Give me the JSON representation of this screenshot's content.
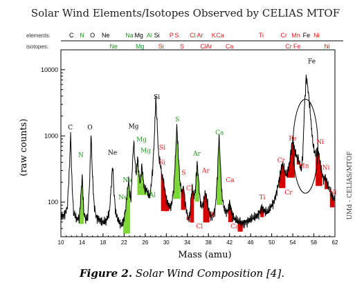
{
  "chart_data": {
    "type": "line",
    "title": "Solar Wind Elements/Isotopes Observed by CELIAS MTOF",
    "xlabel": "Mass  (amu)",
    "ylabel": "(raw counts)",
    "side_label": "UMd - CELIAS/MTOF",
    "caption_bold": "Figure 2.",
    "caption_text": " Solar Wind Composition [4].",
    "x_scale": "linear",
    "y_scale": "log",
    "xlim": [
      10,
      62
    ],
    "ylim": [
      30,
      20000
    ],
    "x_ticks": [
      "10",
      "14",
      "18",
      "22",
      "26",
      "30",
      "34",
      "38",
      "42",
      "46",
      "50",
      "54",
      "58",
      "62"
    ],
    "y_ticks": [
      {
        "value": 100,
        "label": "100"
      },
      {
        "value": 1000,
        "label": "1000"
      },
      {
        "value": 10000,
        "label": "10000"
      }
    ],
    "colors": {
      "element": "#1a9a1a",
      "isotope": "#e8191a",
      "trace": "#000000",
      "green_fill": "#7fd63b",
      "red_fill": "#d50000"
    },
    "header": {
      "elements_label": "elements:",
      "isotopes_label": "isotopes:",
      "elements": [
        {
          "t": "C",
          "x": 12,
          "c": "k"
        },
        {
          "t": "N",
          "x": 14,
          "c": "g"
        },
        {
          "t": "O",
          "x": 16,
          "c": "k"
        },
        {
          "t": "Ne",
          "x": 18.5,
          "c": "k"
        },
        {
          "t": "Na",
          "x": 23,
          "c": "g"
        },
        {
          "t": "Mg",
          "x": 24.8,
          "c": "k"
        },
        {
          "t": "Al",
          "x": 26.8,
          "c": "g"
        },
        {
          "t": "Si",
          "x": 28.2,
          "c": "k"
        },
        {
          "t": "P",
          "x": 31,
          "c": "r"
        },
        {
          "t": "S",
          "x": 32,
          "c": "r"
        },
        {
          "t": "Cl",
          "x": 35,
          "c": "r"
        },
        {
          "t": "Ar",
          "x": 36.4,
          "c": "r"
        },
        {
          "t": "K",
          "x": 39,
          "c": "r"
        },
        {
          "t": "Ca",
          "x": 40.2,
          "c": "r"
        },
        {
          "t": "Ti",
          "x": 48,
          "c": "r"
        },
        {
          "t": "Cr",
          "x": 52.3,
          "c": "r"
        },
        {
          "t": "Mn",
          "x": 54.6,
          "c": "r"
        },
        {
          "t": "Fe",
          "x": 56.6,
          "c": "k"
        },
        {
          "t": "Ni",
          "x": 58.5,
          "c": "r"
        }
      ],
      "isotopes": [
        {
          "t": "Ne",
          "x": 20,
          "c": "g"
        },
        {
          "t": "Mg",
          "x": 25,
          "c": "g"
        },
        {
          "t": "Si",
          "x": 29,
          "c": "r"
        },
        {
          "t": "S",
          "x": 33,
          "c": "r"
        },
        {
          "t": "Cl",
          "x": 37,
          "c": "r"
        },
        {
          "t": "Ar",
          "x": 38.1,
          "c": "r"
        },
        {
          "t": "Ca",
          "x": 42,
          "c": "r"
        },
        {
          "t": "Cr",
          "x": 53.2,
          "c": "r"
        },
        {
          "t": "Fe",
          "x": 54.8,
          "c": "r"
        },
        {
          "t": "Ni",
          "x": 60.5,
          "c": "r"
        }
      ]
    },
    "peak_labels": [
      {
        "t": "C",
        "x": 11.8,
        "y": 1250,
        "c": "k"
      },
      {
        "t": "O",
        "x": 15.5,
        "y": 1250,
        "c": "k"
      },
      {
        "t": "Ne",
        "x": 19.8,
        "y": 520,
        "c": "k"
      },
      {
        "t": "Mg",
        "x": 23.8,
        "y": 1300,
        "c": "k"
      },
      {
        "t": "Si",
        "x": 28.2,
        "y": 3600,
        "c": "k"
      },
      {
        "t": "Fe",
        "x": 57.6,
        "y": 12500,
        "c": "k"
      },
      {
        "t": "N",
        "x": 13.8,
        "y": 480,
        "c": "g"
      },
      {
        "t": "Na",
        "x": 22.6,
        "y": 200,
        "c": "g"
      },
      {
        "t": "Ne",
        "x": 21.8,
        "y": 110,
        "c": "g"
      },
      {
        "t": "Mg",
        "x": 25.3,
        "y": 820,
        "c": "g"
      },
      {
        "t": "Mg",
        "x": 26.1,
        "y": 560,
        "c": "g"
      },
      {
        "t": "Al",
        "x": 27.4,
        "y": 120,
        "c": "g"
      },
      {
        "t": "S",
        "x": 32.1,
        "y": 1650,
        "c": "g"
      },
      {
        "t": "Ar",
        "x": 35.8,
        "y": 500,
        "c": "g"
      },
      {
        "t": "Ca",
        "x": 40.1,
        "y": 1050,
        "c": "g"
      },
      {
        "t": "Si",
        "x": 29.2,
        "y": 620,
        "c": "r"
      },
      {
        "t": "Si",
        "x": 29.2,
        "y": 370,
        "c": "r"
      },
      {
        "t": "S",
        "x": 33.3,
        "y": 260,
        "c": "r"
      },
      {
        "t": "Ar",
        "x": 37.5,
        "y": 280,
        "c": "r"
      },
      {
        "t": "P",
        "x": 30.1,
        "y": 72,
        "c": "r"
      },
      {
        "t": "Cl",
        "x": 34.4,
        "y": 150,
        "c": "r"
      },
      {
        "t": "Cl",
        "x": 34.4,
        "y": 52,
        "c": "r"
      },
      {
        "t": "Cl",
        "x": 36.3,
        "y": 40,
        "c": "r"
      },
      {
        "t": "K",
        "x": 38.8,
        "y": 60,
        "c": "r"
      },
      {
        "t": "Ca",
        "x": 43.0,
        "y": 40,
        "c": "r"
      },
      {
        "t": "Ca",
        "x": 42.1,
        "y": 200,
        "c": "r"
      },
      {
        "t": "Ti",
        "x": 48.2,
        "y": 110,
        "c": "r"
      },
      {
        "t": "Cr",
        "x": 51.8,
        "y": 400,
        "c": "r"
      },
      {
        "t": "Cr",
        "x": 53.2,
        "y": 130,
        "c": "r"
      },
      {
        "t": "Fe",
        "x": 54.0,
        "y": 850,
        "c": "r"
      },
      {
        "t": "Mn",
        "x": 56.1,
        "y": 330,
        "c": "r"
      },
      {
        "t": "Ni",
        "x": 59.2,
        "y": 760,
        "c": "r"
      },
      {
        "t": "Ni",
        "x": 60.3,
        "y": 310,
        "c": "r"
      },
      {
        "t": "Ni",
        "x": 61.6,
        "y": 130,
        "c": "r"
      }
    ],
    "spectrum_anchors": [
      [
        10.0,
        60
      ],
      [
        10.5,
        62
      ],
      [
        11.2,
        80
      ],
      [
        11.6,
        300
      ],
      [
        11.85,
        1050
      ],
      [
        12.1,
        200
      ],
      [
        12.4,
        70
      ],
      [
        13.0,
        55
      ],
      [
        13.5,
        58
      ],
      [
        13.85,
        150
      ],
      [
        14.05,
        250
      ],
      [
        14.35,
        70
      ],
      [
        14.7,
        55
      ],
      [
        15.1,
        60
      ],
      [
        15.45,
        200
      ],
      [
        15.72,
        1100
      ],
      [
        15.95,
        300
      ],
      [
        16.3,
        90
      ],
      [
        16.7,
        60
      ],
      [
        17.2,
        55
      ],
      [
        17.6,
        52
      ],
      [
        18.0,
        50
      ],
      [
        18.6,
        52
      ],
      [
        19.2,
        70
      ],
      [
        19.6,
        200
      ],
      [
        19.82,
        380
      ],
      [
        20.05,
        150
      ],
      [
        20.4,
        70
      ],
      [
        20.8,
        55
      ],
      [
        21.2,
        48
      ],
      [
        21.6,
        45
      ],
      [
        21.95,
        55
      ],
      [
        22.25,
        75
      ],
      [
        22.55,
        130
      ],
      [
        22.85,
        220
      ],
      [
        23.05,
        140
      ],
      [
        23.3,
        110
      ],
      [
        23.6,
        400
      ],
      [
        23.82,
        850
      ],
      [
        24.05,
        420
      ],
      [
        24.3,
        260
      ],
      [
        24.55,
        480
      ],
      [
        24.8,
        270
      ],
      [
        25.05,
        190
      ],
      [
        25.35,
        360
      ],
      [
        25.6,
        230
      ],
      [
        25.9,
        150
      ],
      [
        26.2,
        160
      ],
      [
        26.5,
        140
      ],
      [
        26.8,
        120
      ],
      [
        27.1,
        170
      ],
      [
        27.4,
        300
      ],
      [
        27.75,
        1000
      ],
      [
        28.0,
        3700
      ],
      [
        28.25,
        1600
      ],
      [
        28.55,
        500
      ],
      [
        28.85,
        380
      ],
      [
        29.15,
        260
      ],
      [
        29.45,
        210
      ],
      [
        29.75,
        150
      ],
      [
        30.05,
        110
      ],
      [
        30.35,
        95
      ],
      [
        30.65,
        85
      ],
      [
        31.0,
        90
      ],
      [
        31.4,
        160
      ],
      [
        31.75,
        500
      ],
      [
        32.0,
        1450
      ],
      [
        32.25,
        600
      ],
      [
        32.6,
        200
      ],
      [
        32.95,
        140
      ],
      [
        33.3,
        170
      ],
      [
        33.6,
        95
      ],
      [
        33.9,
        70
      ],
      [
        34.2,
        55
      ],
      [
        34.45,
        60
      ],
      [
        34.7,
        120
      ],
      [
        34.95,
        170
      ],
      [
        35.2,
        120
      ],
      [
        35.5,
        150
      ],
      [
        35.85,
        400
      ],
      [
        36.1,
        230
      ],
      [
        36.4,
        110
      ],
      [
        36.7,
        85
      ],
      [
        37.0,
        95
      ],
      [
        37.4,
        140
      ],
      [
        37.7,
        110
      ],
      [
        38.0,
        80
      ],
      [
        38.3,
        65
      ],
      [
        38.6,
        60
      ],
      [
        38.9,
        65
      ],
      [
        39.3,
        80
      ],
      [
        39.7,
        250
      ],
      [
        40.0,
        1050
      ],
      [
        40.25,
        400
      ],
      [
        40.55,
        130
      ],
      [
        40.9,
        85
      ],
      [
        41.3,
        70
      ],
      [
        41.7,
        75
      ],
      [
        42.0,
        100
      ],
      [
        42.35,
        75
      ],
      [
        42.7,
        60
      ],
      [
        43.0,
        55
      ],
      [
        43.5,
        52
      ],
      [
        44.0,
        50
      ],
      [
        44.5,
        48
      ],
      [
        45.0,
        50
      ],
      [
        45.5,
        52
      ],
      [
        46.0,
        55
      ],
      [
        46.6,
        58
      ],
      [
        47.2,
        62
      ],
      [
        47.7,
        70
      ],
      [
        48.1,
        85
      ],
      [
        48.5,
        75
      ],
      [
        49.0,
        70
      ],
      [
        49.5,
        75
      ],
      [
        50.0,
        90
      ],
      [
        50.4,
        100
      ],
      [
        50.8,
        130
      ],
      [
        51.2,
        180
      ],
      [
        51.6,
        260
      ],
      [
        52.0,
        380
      ],
      [
        52.3,
        330
      ],
      [
        52.7,
        260
      ],
      [
        53.0,
        280
      ],
      [
        53.4,
        400
      ],
      [
        53.7,
        650
      ],
      [
        54.0,
        900
      ],
      [
        54.3,
        650
      ],
      [
        54.7,
        500
      ],
      [
        55.0,
        450
      ],
      [
        55.3,
        380
      ],
      [
        55.6,
        300
      ],
      [
        55.9,
        500
      ],
      [
        56.2,
        2500
      ],
      [
        56.55,
        8000
      ],
      [
        56.9,
        5000
      ],
      [
        57.2,
        3000
      ],
      [
        57.5,
        1500
      ],
      [
        57.8,
        800
      ],
      [
        58.1,
        600
      ],
      [
        58.4,
        500
      ],
      [
        58.7,
        650
      ],
      [
        59.0,
        500
      ],
      [
        59.3,
        350
      ],
      [
        59.6,
        260
      ],
      [
        59.9,
        220
      ],
      [
        60.2,
        240
      ],
      [
        60.5,
        200
      ],
      [
        60.8,
        170
      ],
      [
        61.1,
        150
      ],
      [
        61.4,
        130
      ],
      [
        61.7,
        115
      ],
      [
        62.0,
        110
      ]
    ]
  }
}
